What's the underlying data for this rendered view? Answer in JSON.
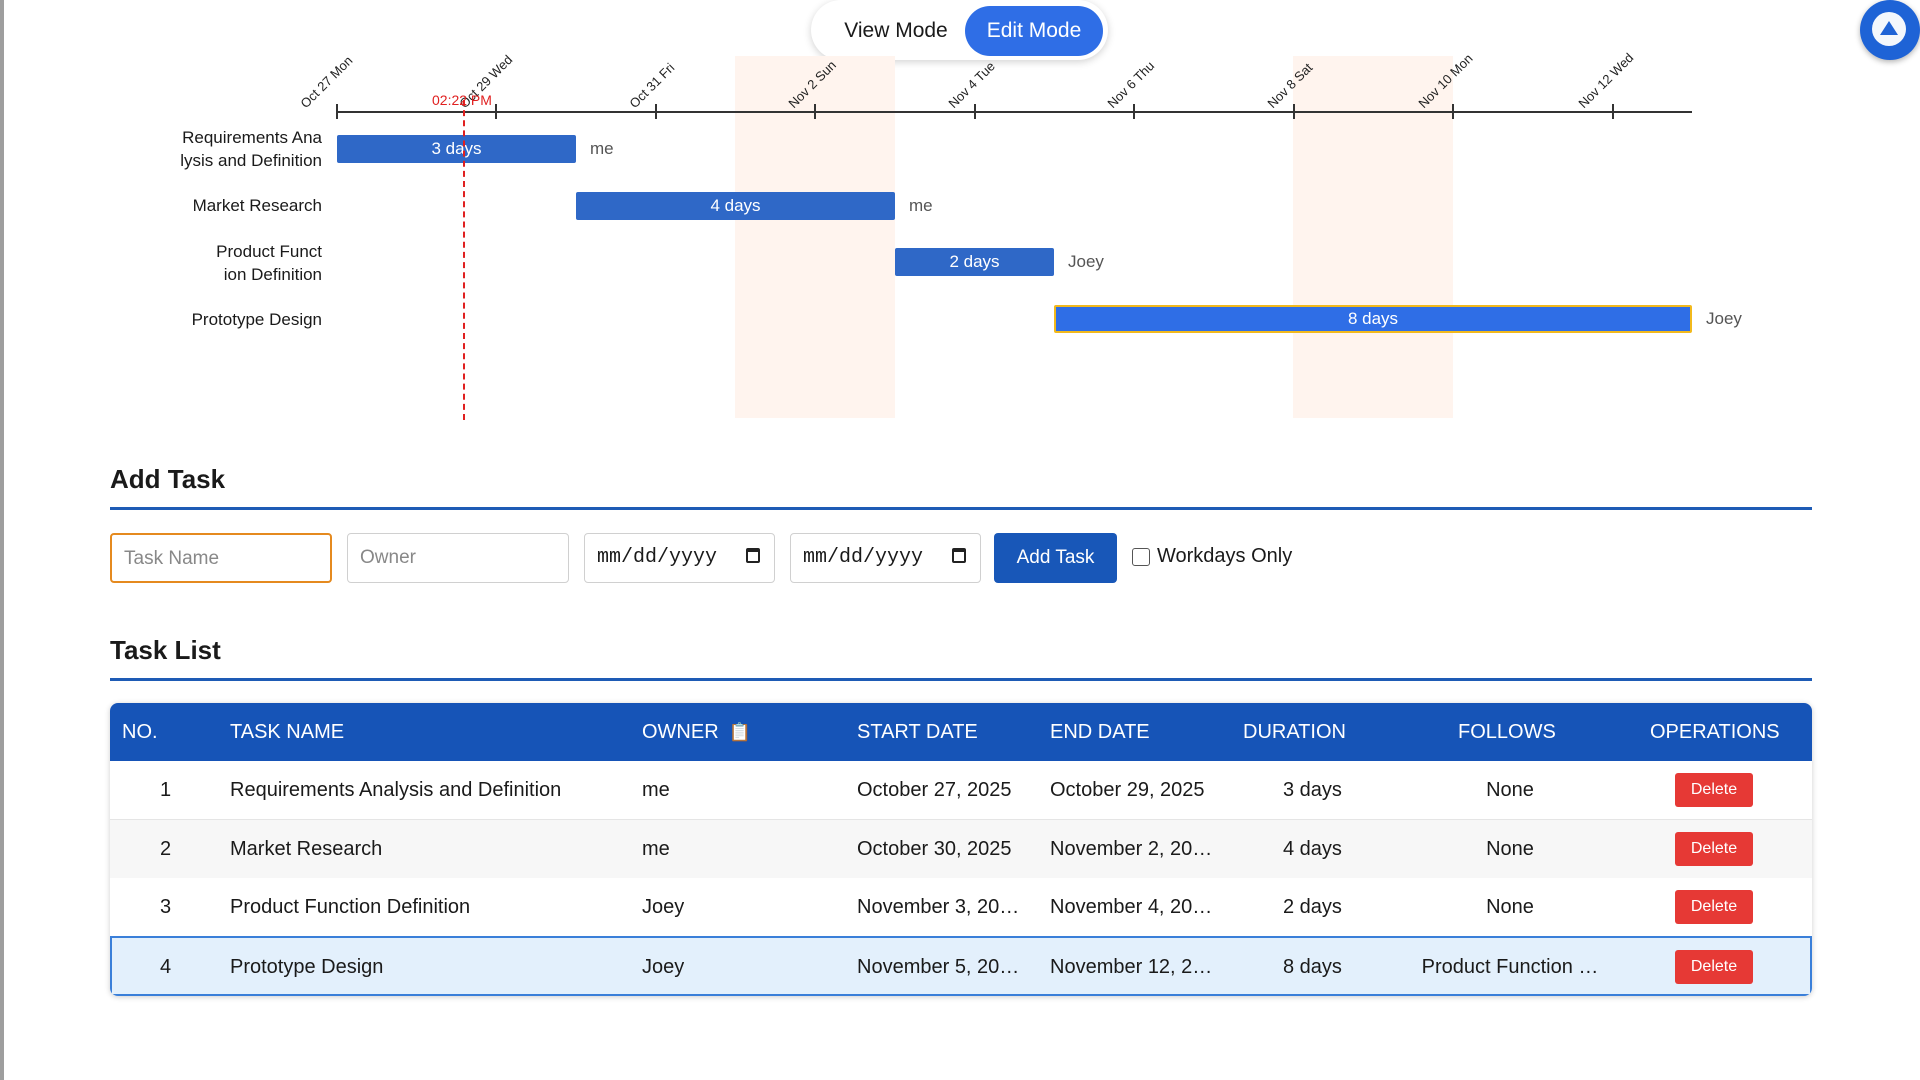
{
  "mode_toggle": {
    "view_label": "View Mode",
    "edit_label": "Edit Mode",
    "active": "Edit Mode"
  },
  "gantt": {
    "dates": [
      "Oct 27 Mon",
      "Oct 29 Wed",
      "Oct 31 Fri",
      "Nov 2 Sun",
      "Nov 4 Tue",
      "Nov 6 Thu",
      "Nov 8 Sat",
      "Nov 10 Mon",
      "Nov 12 Wed"
    ],
    "today_label": "02:22 PM",
    "tasks": [
      {
        "label_lines": [
          "Requirements Ana",
          "lysis and Definition"
        ],
        "bar_text": "3 days",
        "owner": "me"
      },
      {
        "label_lines": [
          "Market Research"
        ],
        "bar_text": "4 days",
        "owner": "me"
      },
      {
        "label_lines": [
          "Product Funct",
          "ion Definition"
        ],
        "bar_text": "2 days",
        "owner": "Joey"
      },
      {
        "label_lines": [
          "Prototype Design"
        ],
        "bar_text": "8 days",
        "owner": "Joey"
      }
    ]
  },
  "add_task": {
    "title": "Add Task",
    "task_name_placeholder": "Task Name",
    "owner_placeholder": "Owner",
    "start_date_placeholder": "mm/dd/yyyy",
    "end_date_placeholder": "mm/dd/yyyy",
    "add_button": "Add Task",
    "workdays_label": "Workdays Only",
    "workdays_checked": false
  },
  "task_list": {
    "title": "Task List",
    "headers": {
      "no": "NO.",
      "task_name": "TASK NAME",
      "owner": "OWNER",
      "start_date": "START DATE",
      "end_date": "END DATE",
      "duration": "DURATION",
      "follows": "FOLLOWS",
      "operations": "OPERATIONS"
    },
    "owner_header_icon": "📋",
    "delete_label": "Delete",
    "rows": [
      {
        "no": "1",
        "name": "Requirements Analysis and Definition",
        "owner": "me",
        "start": "October 27, 2025",
        "end": "October 29, 2025",
        "duration": "3 days",
        "follows": "None"
      },
      {
        "no": "2",
        "name": "Market Research",
        "owner": "me",
        "start": "October 30, 2025",
        "end": "November 2, 20…",
        "duration": "4 days",
        "follows": "None"
      },
      {
        "no": "3",
        "name": "Product Function Definition",
        "owner": "Joey",
        "start": "November 3, 20…",
        "end": "November 4, 20…",
        "duration": "2 days",
        "follows": "None"
      },
      {
        "no": "4",
        "name": "Prototype Design",
        "owner": "Joey",
        "start": "November 5, 20…",
        "end": "November 12, 2…",
        "duration": "8 days",
        "follows": "Product Function …"
      }
    ]
  },
  "colors": {
    "accent": "#2f6ee6",
    "header_blue": "#1654b7",
    "delete_red": "#e63935",
    "today_red": "#e02020",
    "weekend": "#fff4ee"
  }
}
